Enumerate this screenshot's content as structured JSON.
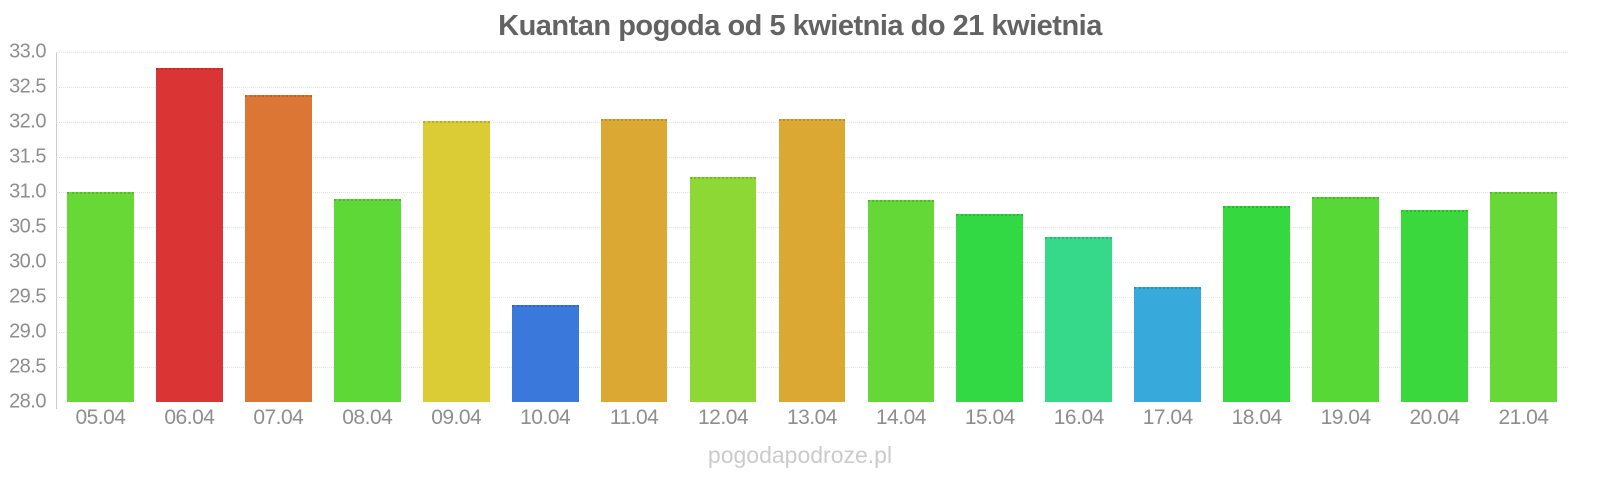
{
  "title": "Kuantan pogoda od 5 kwietnia do 21 kwietnia",
  "watermark": "pogodapodroze.pl",
  "colors": {
    "background": "#ffffff",
    "title_text": "#636363",
    "axis_text": "#8e8e8e",
    "grid_line": "#e4e4e4",
    "axis_line": "#cccccc",
    "watermark_text": "#cbcbcb"
  },
  "chart_data": {
    "type": "bar",
    "title": "Kuantan pogoda od 5 kwietnia do 21 kwietnia",
    "xlabel": "",
    "ylabel": "",
    "ylim": [
      28.0,
      33.0
    ],
    "ytick_step": 0.5,
    "ytick_labels": [
      "33.0",
      "32.5",
      "32.0",
      "31.5",
      "31.0",
      "30.5",
      "30.0",
      "29.5",
      "29.0",
      "28.5",
      "28.0"
    ],
    "grid": "horizontal-dotted",
    "legend": "none",
    "categories": [
      "05.04",
      "06.04",
      "07.04",
      "08.04",
      "09.04",
      "10.04",
      "11.04",
      "12.04",
      "13.04",
      "14.04",
      "15.04",
      "16.04",
      "17.04",
      "18.04",
      "19.04",
      "20.04",
      "21.04"
    ],
    "values": [
      31.0,
      32.77,
      32.38,
      30.9,
      32.01,
      29.39,
      32.04,
      31.21,
      32.04,
      30.88,
      30.68,
      30.36,
      29.65,
      30.8,
      30.93,
      30.75,
      31.0
    ],
    "bar_colors": [
      "#68d836",
      "#db3434",
      "#db7634",
      "#5dd836",
      "#dbcb34",
      "#3a78db",
      "#dba834",
      "#8dd834",
      "#dba834",
      "#63d836",
      "#33d845",
      "#36d88a",
      "#38a9db",
      "#36d83f",
      "#58d836",
      "#3ad83d",
      "#68d836"
    ]
  }
}
